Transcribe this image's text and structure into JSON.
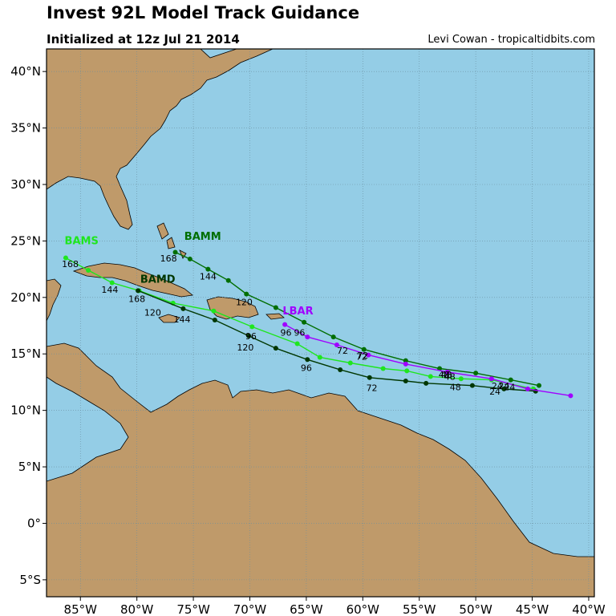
{
  "header": {
    "title": "Invest 92L Model Track Guidance",
    "subtitle": "Initialized at 12z Jul 21 2014",
    "credit": "Levi Cowan - tropicaltidbits.com"
  },
  "chart_data": {
    "type": "map",
    "lon_range": [
      -88,
      -39.5
    ],
    "lat_range": [
      -6.5,
      42
    ],
    "lon_ticks": [
      {
        "value": -85,
        "label": "85°W"
      },
      {
        "value": -80,
        "label": "80°W"
      },
      {
        "value": -75,
        "label": "75°W"
      },
      {
        "value": -70,
        "label": "70°W"
      },
      {
        "value": -65,
        "label": "65°W"
      },
      {
        "value": -60,
        "label": "60°W"
      },
      {
        "value": -55,
        "label": "55°W"
      },
      {
        "value": -50,
        "label": "50°W"
      },
      {
        "value": -45,
        "label": "45°W"
      },
      {
        "value": -40,
        "label": "40°W"
      }
    ],
    "lat_ticks": [
      {
        "value": 40,
        "label": "40°N"
      },
      {
        "value": 35,
        "label": "35°N"
      },
      {
        "value": 30,
        "label": "30°N"
      },
      {
        "value": 25,
        "label": "25°N"
      },
      {
        "value": 20,
        "label": "20°N"
      },
      {
        "value": 15,
        "label": "15°N"
      },
      {
        "value": 10,
        "label": "10°N"
      },
      {
        "value": 5,
        "label": "5°N"
      },
      {
        "value": 0,
        "label": "0°"
      },
      {
        "value": -5,
        "label": "5°S"
      }
    ],
    "grid": true,
    "colors": {
      "ocean": "#94cde6",
      "land": "#bf9a6a",
      "coast": "#000000",
      "grid": "#6a8fa0"
    },
    "series": [
      {
        "name": "BAMS",
        "color": "#1ee61e",
        "points": [
          [
            -44.9,
            11.9
          ],
          [
            -48.6,
            12.7
          ],
          [
            -51.3,
            12.8
          ],
          [
            -54.0,
            13.0
          ],
          [
            -56.1,
            13.5
          ],
          [
            -58.2,
            13.7
          ],
          [
            -61.1,
            14.2
          ],
          [
            -63.8,
            14.7
          ],
          [
            -65.8,
            15.9
          ],
          [
            -69.8,
            17.4
          ],
          [
            -73.2,
            18.8
          ],
          [
            -76.8,
            19.5
          ],
          [
            -79.8,
            20.6
          ],
          [
            -82.2,
            21.3
          ],
          [
            -84.3,
            22.4
          ],
          [
            -86.3,
            23.5
          ]
        ],
        "labels": [
          {
            "text": "24",
            "lon": -47.5,
            "lat": 11.9
          },
          {
            "text": "48",
            "lon": -52.3,
            "lat": 12.7
          },
          {
            "text": "72",
            "lon": -60.1,
            "lat": 14.5
          },
          {
            "text": "96",
            "lon": -69.9,
            "lat": 16.3
          },
          {
            "text": "120",
            "lon": -78.6,
            "lat": 18.4
          },
          {
            "text": "144",
            "lon": -82.4,
            "lat": 20.4
          },
          {
            "text": "168",
            "lon": -85.9,
            "lat": 22.7
          }
        ],
        "model_label": {
          "text": "BAMS",
          "lon": -86.4,
          "lat": 24.7
        }
      },
      {
        "name": "BAMM",
        "color": "#006e00",
        "points": [
          [
            -44.4,
            12.2
          ],
          [
            -46.9,
            12.7
          ],
          [
            -50.0,
            13.3
          ],
          [
            -53.2,
            13.7
          ],
          [
            -56.2,
            14.4
          ],
          [
            -59.9,
            15.4
          ],
          [
            -62.6,
            16.5
          ],
          [
            -65.2,
            17.8
          ],
          [
            -67.7,
            19.1
          ],
          [
            -70.3,
            20.3
          ],
          [
            -71.9,
            21.5
          ],
          [
            -73.7,
            22.5
          ],
          [
            -75.3,
            23.4
          ],
          [
            -76.6,
            24.0
          ]
        ],
        "labels": [
          {
            "text": "24",
            "lon": -47.0,
            "lat": 11.8
          },
          {
            "text": "48",
            "lon": -52.6,
            "lat": 12.9
          },
          {
            "text": "72",
            "lon": -60.0,
            "lat": 14.6
          },
          {
            "text": "96",
            "lon": -65.6,
            "lat": 16.6
          },
          {
            "text": "120",
            "lon": -70.5,
            "lat": 19.3
          },
          {
            "text": "144",
            "lon": -73.7,
            "lat": 21.6
          },
          {
            "text": "168",
            "lon": -77.2,
            "lat": 23.2
          }
        ],
        "model_label": {
          "text": "BAMM",
          "lon": -75.8,
          "lat": 25.1
        }
      },
      {
        "name": "BAMD",
        "color": "#003700",
        "points": [
          [
            -44.7,
            11.7
          ],
          [
            -47.5,
            11.9
          ],
          [
            -50.3,
            12.2
          ],
          [
            -54.4,
            12.4
          ],
          [
            -56.2,
            12.6
          ],
          [
            -59.4,
            12.9
          ],
          [
            -62.0,
            13.6
          ],
          [
            -64.9,
            14.5
          ],
          [
            -67.7,
            15.5
          ],
          [
            -70.1,
            16.6
          ],
          [
            -73.1,
            18.0
          ],
          [
            -75.9,
            19.0
          ],
          [
            -79.9,
            20.6
          ]
        ],
        "labels": [
          {
            "text": "24",
            "lon": -48.3,
            "lat": 11.4
          },
          {
            "text": "48",
            "lon": -51.8,
            "lat": 11.8
          },
          {
            "text": "72",
            "lon": -59.2,
            "lat": 11.7
          },
          {
            "text": "96",
            "lon": -65.0,
            "lat": 13.5
          },
          {
            "text": "120",
            "lon": -70.4,
            "lat": 15.3
          },
          {
            "text": "144",
            "lon": -76.0,
            "lat": 17.8
          },
          {
            "text": "168",
            "lon": -80.0,
            "lat": 19.6
          }
        ],
        "model_label": {
          "text": "BAMD",
          "lon": -79.7,
          "lat": 21.3
        }
      },
      {
        "name": "LBAR",
        "color": "#a000ff",
        "points": [
          [
            -41.6,
            11.3
          ],
          [
            -45.4,
            11.9
          ],
          [
            -48.6,
            12.8
          ],
          [
            -52.5,
            13.4
          ],
          [
            -56.2,
            14.1
          ],
          [
            -59.5,
            14.9
          ],
          [
            -62.3,
            15.8
          ],
          [
            -64.9,
            16.5
          ],
          [
            -66.9,
            17.6
          ]
        ],
        "labels": [
          {
            "text": "24",
            "lon": -48.1,
            "lat": 11.9
          },
          {
            "text": "48",
            "lon": -52.8,
            "lat": 12.9
          },
          {
            "text": "72",
            "lon": -61.8,
            "lat": 15.0
          },
          {
            "text": "96",
            "lon": -66.8,
            "lat": 16.6
          }
        ],
        "model_label": {
          "text": "LBAR",
          "lon": -67.1,
          "lat": 18.5
        }
      }
    ]
  }
}
